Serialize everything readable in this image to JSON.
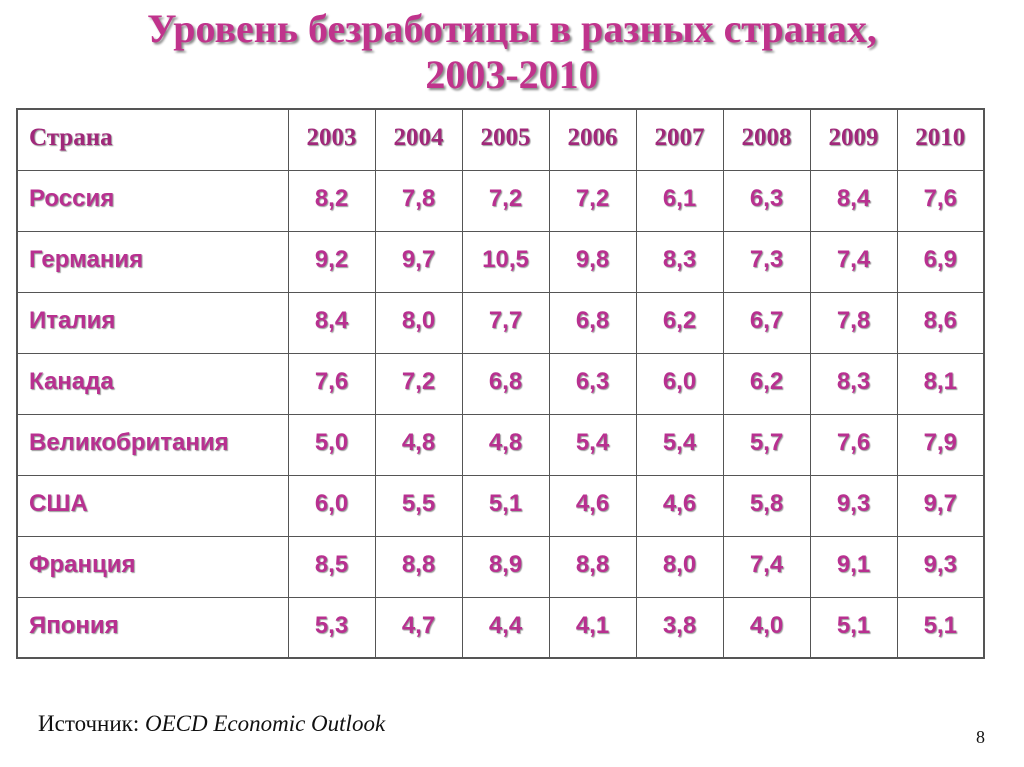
{
  "title": {
    "line1": "Уровень безработицы в разных странах,",
    "line2": "2003-2010"
  },
  "table": {
    "header_country": "Страна",
    "years": [
      "2003",
      "2004",
      "2005",
      "2006",
      "2007",
      "2008",
      "2009",
      "2010"
    ],
    "rows": [
      {
        "country": "Россия",
        "values": [
          "8,2",
          "7,8",
          "7,2",
          "7,2",
          "6,1",
          "6,3",
          "8,4",
          "7,6"
        ]
      },
      {
        "country": "Германия",
        "values": [
          "9,2",
          "9,7",
          "10,5",
          "9,8",
          "8,3",
          "7,3",
          "7,4",
          "6,9"
        ]
      },
      {
        "country": "Италия",
        "values": [
          "8,4",
          "8,0",
          "7,7",
          "6,8",
          "6,2",
          "6,7",
          "7,8",
          "8,6"
        ]
      },
      {
        "country": "Канада",
        "values": [
          "7,6",
          "7,2",
          "6,8",
          "6,3",
          "6,0",
          "6,2",
          "8,3",
          "8,1"
        ]
      },
      {
        "country": "Великобритания",
        "values": [
          "5,0",
          "4,8",
          "4,8",
          "5,4",
          "5,4",
          "5,7",
          "7,6",
          "7,9"
        ]
      },
      {
        "country": "США",
        "values": [
          "6,0",
          "5,5",
          "5,1",
          "4,6",
          "4,6",
          "5,8",
          "9,3",
          "9,7"
        ]
      },
      {
        "country": "Франция",
        "values": [
          "8,5",
          "8,8",
          "8,9",
          "8,8",
          "8,0",
          "7,4",
          "9,1",
          "9,3"
        ]
      },
      {
        "country": "Япония",
        "values": [
          "5,3",
          "4,7",
          "4,4",
          "4,1",
          "3,8",
          "4,0",
          "5,1",
          "5,1"
        ]
      }
    ]
  },
  "footer": {
    "label": "Источник: ",
    "source": "OECD Economic Outlook"
  },
  "page_number": "8",
  "colors": {
    "title": "#C0338C",
    "cell_text": "#B83090"
  }
}
